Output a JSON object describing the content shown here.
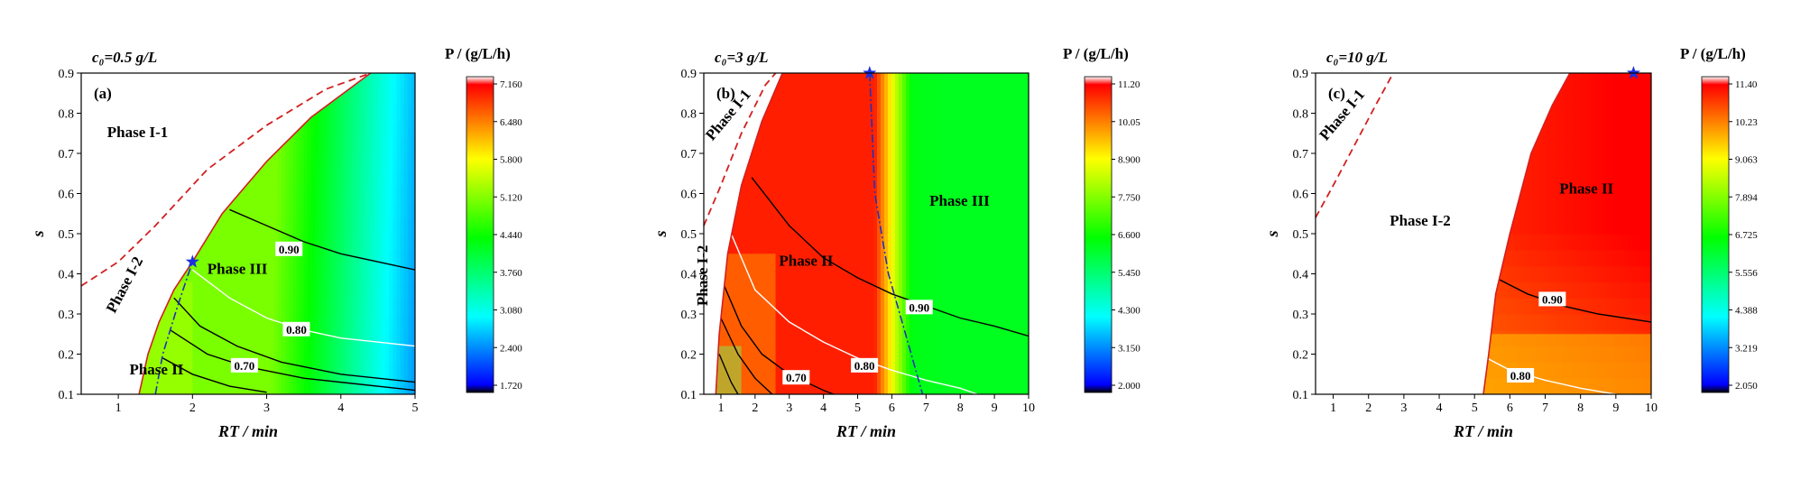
{
  "chart_data": [
    {
      "type": "heatmap",
      "panel_label": "(a)",
      "title": "c₀=0.5 g/L",
      "xlabel": "RT / min",
      "ylabel": "s",
      "xlim": [
        0.5,
        5
      ],
      "ylim": [
        0.1,
        0.9
      ],
      "x_ticks": [
        1,
        2,
        3,
        4,
        5
      ],
      "y_ticks": [
        0.1,
        0.2,
        0.3,
        0.4,
        0.5,
        0.6,
        0.7,
        0.8,
        0.9
      ],
      "colorbar": {
        "title": "P / (g/L/h)",
        "min": 1.72,
        "max": 7.16,
        "ticks": [
          "7.160",
          "6.480",
          "5.800",
          "5.120",
          "4.440",
          "3.760",
          "3.080",
          "2.400",
          "1.720"
        ]
      },
      "boundary_feasible": [
        [
          1.28,
          0.1
        ],
        [
          1.4,
          0.2
        ],
        [
          1.55,
          0.28
        ],
        [
          1.75,
          0.36
        ],
        [
          2.0,
          0.43
        ],
        [
          2.4,
          0.55
        ],
        [
          3.0,
          0.68
        ],
        [
          3.6,
          0.79
        ],
        [
          4.4,
          0.9
        ]
      ],
      "boundary_dashed": [
        [
          0.5,
          0.37
        ],
        [
          1.0,
          0.43
        ],
        [
          1.5,
          0.52
        ],
        [
          2.2,
          0.66
        ],
        [
          3.0,
          0.77
        ],
        [
          3.8,
          0.86
        ],
        [
          4.4,
          0.9
        ]
      ],
      "boundary_phase2_dashdot": [
        [
          1.5,
          0.1
        ],
        [
          1.6,
          0.2
        ],
        [
          1.8,
          0.32
        ],
        [
          2.0,
          0.43
        ]
      ],
      "contours": [
        {
          "label": "0.90",
          "color": "black",
          "label_at": [
            3.3,
            0.46
          ],
          "points": [
            [
              2.5,
              0.56
            ],
            [
              3.0,
              0.52
            ],
            [
              3.5,
              0.48
            ],
            [
              4.0,
              0.45
            ],
            [
              5.0,
              0.41
            ]
          ]
        },
        {
          "label": "0.80",
          "color": "white",
          "label_at": [
            3.4,
            0.26
          ],
          "points": [
            [
              2.0,
              0.41
            ],
            [
              2.5,
              0.34
            ],
            [
              3.0,
              0.29
            ],
            [
              3.5,
              0.26
            ],
            [
              4.0,
              0.24
            ],
            [
              5.0,
              0.22
            ]
          ]
        },
        {
          "label": "0.70",
          "color": "black",
          "label_at": [
            2.7,
            0.17
          ],
          "points": [
            [
              1.7,
              0.26
            ],
            [
              2.2,
              0.2
            ],
            [
              2.7,
              0.17
            ],
            [
              3.5,
              0.14
            ],
            [
              5.0,
              0.11
            ]
          ]
        },
        {
          "label": "",
          "color": "black",
          "points": [
            [
              1.75,
              0.34
            ],
            [
              2.1,
              0.27
            ],
            [
              2.6,
              0.22
            ],
            [
              3.2,
              0.18
            ],
            [
              4.0,
              0.15
            ],
            [
              5.0,
              0.13
            ]
          ]
        },
        {
          "label": "",
          "color": "black",
          "points": [
            [
              1.6,
              0.19
            ],
            [
              2.0,
              0.15
            ],
            [
              2.5,
              0.12
            ],
            [
              3.0,
              0.105
            ]
          ]
        }
      ],
      "optimum": [
        2.0,
        0.43
      ],
      "regions": [
        {
          "text": "Phase I-1",
          "at": [
            0.85,
            0.74
          ]
        },
        {
          "text": "Phase I-2",
          "at": [
            0.95,
            0.3
          ],
          "rotate": -62
        },
        {
          "text": "Phase III",
          "at": [
            2.2,
            0.4
          ]
        },
        {
          "text": "Phase II",
          "at": [
            1.15,
            0.15
          ]
        }
      ]
    },
    {
      "type": "heatmap",
      "panel_label": "(b)",
      "title": "c₀=3 g/L",
      "xlabel": "RT / min",
      "ylabel": "s",
      "xlim": [
        0.5,
        10
      ],
      "ylim": [
        0.1,
        0.9
      ],
      "x_ticks": [
        1,
        2,
        3,
        4,
        5,
        6,
        7,
        8,
        9,
        10
      ],
      "y_ticks": [
        0.1,
        0.2,
        0.3,
        0.4,
        0.5,
        0.6,
        0.7,
        0.8,
        0.9
      ],
      "colorbar": {
        "title": "P / (g/L/h)",
        "min": 2.0,
        "max": 11.2,
        "ticks": [
          "11.20",
          "10.05",
          "8.900",
          "7.750",
          "6.600",
          "5.450",
          "4.300",
          "3.150",
          "2.000"
        ]
      },
      "boundary_feasible": [
        [
          0.85,
          0.1
        ],
        [
          0.95,
          0.25
        ],
        [
          1.2,
          0.45
        ],
        [
          1.6,
          0.62
        ],
        [
          2.2,
          0.78
        ],
        [
          2.8,
          0.9
        ]
      ],
      "boundary_dashed": [
        [
          0.5,
          0.52
        ],
        [
          1.0,
          0.62
        ],
        [
          1.6,
          0.75
        ],
        [
          2.3,
          0.87
        ],
        [
          2.6,
          0.9
        ]
      ],
      "boundary_phase2_dashdot": [
        [
          5.35,
          0.9
        ],
        [
          5.5,
          0.6
        ],
        [
          5.9,
          0.4
        ],
        [
          6.4,
          0.25
        ],
        [
          6.8,
          0.13
        ],
        [
          6.9,
          0.1
        ]
      ],
      "contours": [
        {
          "label": "0.90",
          "color": "black",
          "label_at": [
            6.8,
            0.315
          ],
          "points": [
            [
              1.9,
              0.64
            ],
            [
              3.0,
              0.52
            ],
            [
              4.0,
              0.44
            ],
            [
              5.0,
              0.39
            ],
            [
              6.0,
              0.35
            ],
            [
              7.0,
              0.32
            ],
            [
              8.0,
              0.29
            ],
            [
              9.0,
              0.27
            ],
            [
              10.0,
              0.245
            ]
          ]
        },
        {
          "label": "0.80",
          "color": "white",
          "label_at": [
            5.2,
            0.17
          ],
          "points": [
            [
              1.2,
              0.52
            ],
            [
              2.0,
              0.36
            ],
            [
              3.0,
              0.28
            ],
            [
              4.0,
              0.23
            ],
            [
              5.0,
              0.19
            ],
            [
              6.0,
              0.16
            ],
            [
              7.0,
              0.135
            ],
            [
              8.0,
              0.115
            ],
            [
              8.5,
              0.1
            ]
          ]
        },
        {
          "label": "0.70",
          "color": "black",
          "label_at": [
            3.2,
            0.14
          ],
          "points": [
            [
              1.1,
              0.37
            ],
            [
              1.6,
              0.27
            ],
            [
              2.2,
              0.2
            ],
            [
              3.0,
              0.15
            ],
            [
              4.0,
              0.11
            ],
            [
              4.3,
              0.1
            ]
          ]
        },
        {
          "label": "",
          "color": "black",
          "points": [
            [
              1.0,
              0.29
            ],
            [
              1.5,
              0.2
            ],
            [
              2.0,
              0.14
            ],
            [
              2.5,
              0.1
            ]
          ]
        },
        {
          "label": "",
          "color": "black",
          "points": [
            [
              0.95,
              0.2
            ],
            [
              1.3,
              0.13
            ],
            [
              1.5,
              0.1
            ]
          ]
        }
      ],
      "optimum": [
        5.35,
        0.9
      ],
      "regions": [
        {
          "text": "Phase I-1",
          "at": [
            0.75,
            0.73
          ],
          "rotate": -50
        },
        {
          "text": "Phase I-2",
          "at": [
            0.6,
            0.32
          ],
          "rotate": -90
        },
        {
          "text": "Phase II",
          "at": [
            2.7,
            0.42
          ]
        },
        {
          "text": "Phase III",
          "at": [
            7.1,
            0.57
          ]
        }
      ]
    },
    {
      "type": "heatmap",
      "panel_label": "(c)",
      "title": "c₀=10 g/L",
      "xlabel": "RT / min",
      "ylabel": "s",
      "xlim": [
        0.5,
        10
      ],
      "ylim": [
        0.1,
        0.9
      ],
      "x_ticks": [
        1,
        2,
        3,
        4,
        5,
        6,
        7,
        8,
        9,
        10
      ],
      "y_ticks": [
        0.1,
        0.2,
        0.3,
        0.4,
        0.5,
        0.6,
        0.7,
        0.8,
        0.9
      ],
      "colorbar": {
        "title": "P / (g/L/h)",
        "min": 2.05,
        "max": 11.4,
        "ticks": [
          "11.40",
          "10.23",
          "9.063",
          "7.894",
          "6.725",
          "5.556",
          "4.388",
          "3.219",
          "2.050"
        ]
      },
      "boundary_feasible": [
        [
          5.25,
          0.1
        ],
        [
          5.4,
          0.2
        ],
        [
          5.6,
          0.35
        ],
        [
          6.0,
          0.5
        ],
        [
          6.6,
          0.7
        ],
        [
          7.2,
          0.82
        ],
        [
          7.7,
          0.9
        ]
      ],
      "boundary_dashed": [
        [
          0.5,
          0.54
        ],
        [
          1.0,
          0.62
        ],
        [
          1.6,
          0.72
        ],
        [
          2.2,
          0.82
        ],
        [
          2.7,
          0.9
        ]
      ],
      "contours": [
        {
          "label": "0.90",
          "color": "black",
          "label_at": [
            7.2,
            0.335
          ],
          "points": [
            [
              5.6,
              0.39
            ],
            [
              6.5,
              0.35
            ],
            [
              7.5,
              0.32
            ],
            [
              8.5,
              0.3
            ],
            [
              10.0,
              0.28
            ]
          ]
        },
        {
          "label": "0.80",
          "color": "white",
          "label_at": [
            6.3,
            0.145
          ],
          "points": [
            [
              5.35,
              0.19
            ],
            [
              6.0,
              0.16
            ],
            [
              7.0,
              0.135
            ],
            [
              8.0,
              0.115
            ],
            [
              9.0,
              0.1
            ]
          ]
        }
      ],
      "optimum": [
        9.5,
        0.9
      ],
      "regions": [
        {
          "text": "Phase I-1",
          "at": [
            0.8,
            0.73
          ],
          "rotate": -50
        },
        {
          "text": "Phase I-2",
          "at": [
            2.6,
            0.52
          ]
        },
        {
          "text": "Phase II",
          "at": [
            7.4,
            0.6
          ]
        }
      ]
    }
  ]
}
